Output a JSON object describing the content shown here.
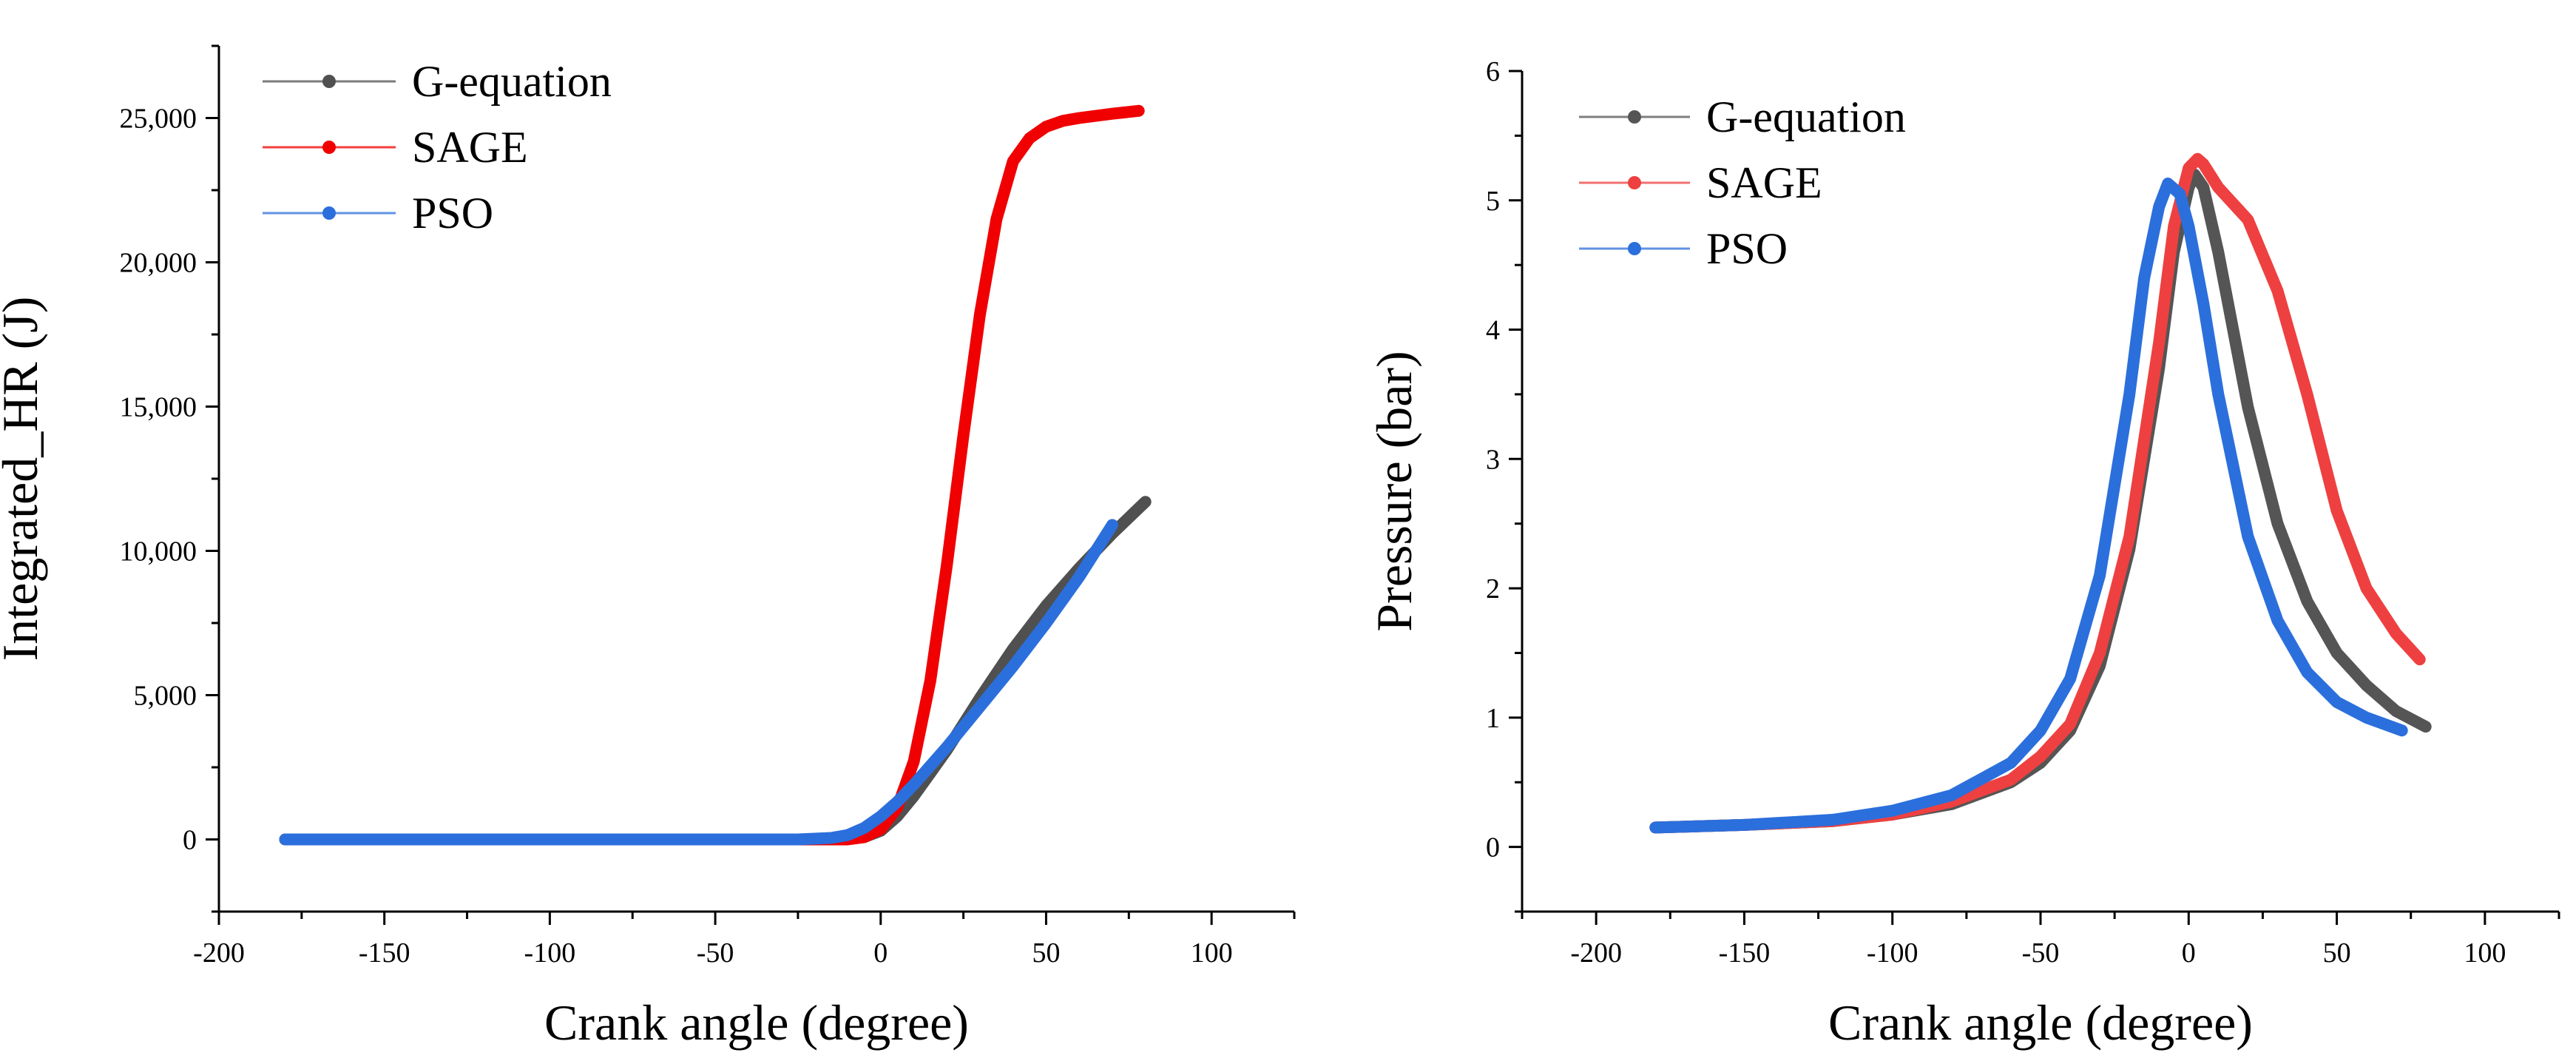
{
  "chart_data": [
    {
      "type": "line",
      "xlabel": "Crank angle (degree)",
      "ylabel": "Integrated_HR (J)",
      "xlim": [
        -200,
        125
      ],
      "ylim": [
        -2500,
        27500
      ],
      "xticks": [
        -200,
        -150,
        -100,
        -50,
        0,
        50,
        100
      ],
      "yticks": [
        0,
        5000,
        10000,
        15000,
        20000,
        25000
      ],
      "ytick_labels": [
        "0",
        "5,000",
        "10,000",
        "15,000",
        "20,000",
        "25,000"
      ],
      "legend_position": "top-left",
      "series": [
        {
          "name": "G-equation",
          "color": "#505050",
          "x": [
            -180,
            -20,
            -5,
            0,
            5,
            10,
            15,
            20,
            30,
            40,
            50,
            60,
            70,
            80
          ],
          "y": [
            0,
            0,
            80,
            300,
            800,
            1500,
            2300,
            3100,
            4900,
            6600,
            8100,
            9400,
            10600,
            11700
          ]
        },
        {
          "name": "SAGE",
          "color": "#f00000",
          "x": [
            -180,
            -10,
            -5,
            0,
            5,
            10,
            15,
            20,
            25,
            30,
            35,
            40,
            45,
            50,
            55,
            60,
            70,
            78
          ],
          "y": [
            0,
            0,
            80,
            350,
            1100,
            2700,
            5500,
            9500,
            14000,
            18200,
            21500,
            23500,
            24300,
            24700,
            24900,
            25000,
            25150,
            25250
          ]
        },
        {
          "name": "PSO",
          "color": "#2b6fdc",
          "x": [
            -180,
            -25,
            -15,
            -10,
            -5,
            0,
            5,
            10,
            20,
            30,
            40,
            50,
            60,
            70
          ],
          "y": [
            0,
            0,
            50,
            150,
            400,
            800,
            1300,
            1900,
            3200,
            4600,
            6000,
            7500,
            9100,
            10900
          ]
        }
      ]
    },
    {
      "type": "line",
      "xlabel": "Crank angle (degree)",
      "ylabel": "Pressure (bar)",
      "xlim": [
        -225,
        125
      ],
      "ylim": [
        -0.5,
        6
      ],
      "xticks": [
        -200,
        -150,
        -100,
        -50,
        0,
        50,
        100
      ],
      "yticks": [
        0,
        1,
        2,
        3,
        4,
        5,
        6
      ],
      "ytick_labels": [
        "0",
        "1",
        "2",
        "3",
        "4",
        "5",
        "6"
      ],
      "legend_position": "top-left",
      "series": [
        {
          "name": "G-equation",
          "color": "#555555",
          "x": [
            -180,
            -150,
            -120,
            -100,
            -80,
            -60,
            -50,
            -40,
            -30,
            -20,
            -10,
            -5,
            0,
            2,
            5,
            10,
            20,
            30,
            40,
            50,
            60,
            70,
            80
          ],
          "y": [
            0.15,
            0.17,
            0.2,
            0.25,
            0.33,
            0.5,
            0.65,
            0.9,
            1.4,
            2.3,
            3.7,
            4.6,
            5.1,
            5.2,
            5.1,
            4.6,
            3.4,
            2.5,
            1.9,
            1.5,
            1.25,
            1.05,
            0.93
          ]
        },
        {
          "name": "SAGE",
          "color": "#ee4040",
          "x": [
            -180,
            -150,
            -120,
            -100,
            -80,
            -60,
            -50,
            -40,
            -30,
            -20,
            -10,
            -5,
            0,
            3,
            5,
            10,
            20,
            30,
            40,
            50,
            60,
            70,
            78
          ],
          "y": [
            0.15,
            0.17,
            0.2,
            0.25,
            0.35,
            0.52,
            0.7,
            0.95,
            1.5,
            2.4,
            3.9,
            4.8,
            5.25,
            5.32,
            5.28,
            5.1,
            4.85,
            4.3,
            3.5,
            2.6,
            2.0,
            1.65,
            1.45
          ]
        },
        {
          "name": "PSO",
          "color": "#2b6fdc",
          "x": [
            -180,
            -150,
            -120,
            -100,
            -80,
            -60,
            -50,
            -40,
            -30,
            -20,
            -15,
            -10,
            -7,
            -3,
            0,
            5,
            10,
            20,
            30,
            40,
            50,
            60,
            72
          ],
          "y": [
            0.15,
            0.17,
            0.21,
            0.28,
            0.4,
            0.65,
            0.9,
            1.3,
            2.1,
            3.5,
            4.4,
            4.95,
            5.13,
            5.05,
            4.8,
            4.2,
            3.5,
            2.4,
            1.75,
            1.35,
            1.12,
            1.0,
            0.9
          ]
        }
      ]
    }
  ]
}
